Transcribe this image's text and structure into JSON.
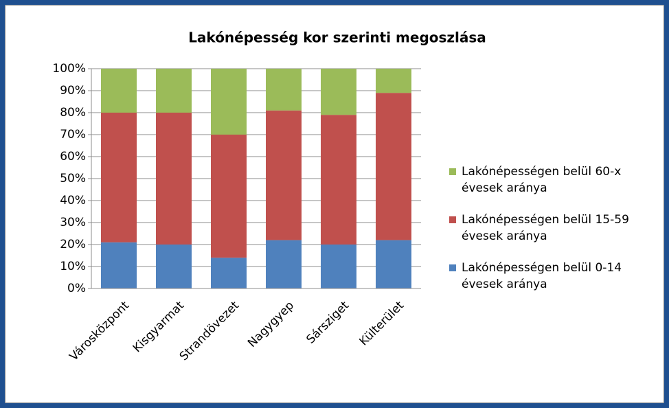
{
  "chart_data": {
    "type": "stacked_bar",
    "title": "Lakónépesség kor szerinti megoszlása",
    "categories": [
      "Városközpont",
      "Kisgyarmat",
      "Strandövezet",
      "Nagygyep",
      "Sársziget",
      "Külterület"
    ],
    "series": [
      {
        "name": "Lakónépességen belül 0-14 évesek aránya",
        "color": "#4f81bd",
        "values": [
          21,
          20,
          14,
          22,
          20,
          22
        ]
      },
      {
        "name": "Lakónépességen belül 15-59 évesek aránya",
        "color": "#c0504d",
        "values": [
          59,
          60,
          56,
          59,
          59,
          67
        ]
      },
      {
        "name": "Lakónépességen belül 60-x évesek aránya",
        "color": "#9bbb59",
        "values": [
          20,
          20,
          30,
          19,
          21,
          11
        ]
      }
    ],
    "ylim": [
      0,
      100
    ],
    "yticks": [
      {
        "value": 0,
        "label": "0%"
      },
      {
        "value": 10,
        "label": "10%"
      },
      {
        "value": 20,
        "label": "20%"
      },
      {
        "value": 30,
        "label": "30%"
      },
      {
        "value": 40,
        "label": "40%"
      },
      {
        "value": 50,
        "label": "50%"
      },
      {
        "value": 60,
        "label": "60%"
      },
      {
        "value": 70,
        "label": "70%"
      },
      {
        "value": 80,
        "label": "80%"
      },
      {
        "value": 90,
        "label": "90%"
      },
      {
        "value": 100,
        "label": "100%"
      }
    ],
    "grid": true,
    "legend": "right"
  }
}
